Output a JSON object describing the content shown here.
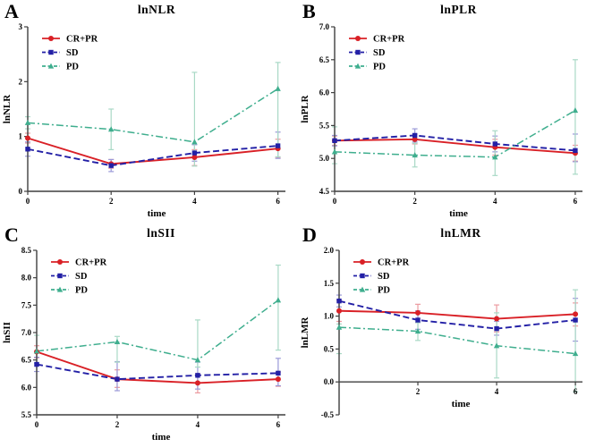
{
  "figure": {
    "background": "#ffffff",
    "axis_color": "#3f3f3f",
    "text_color": "#000000"
  },
  "chart_data": [
    {
      "panel": "A",
      "type": "line",
      "title": "lnNLR",
      "xlabel": "time",
      "ylabel": "lnNLR",
      "x": [
        0,
        2,
        4,
        6
      ],
      "xticks": [
        0,
        2,
        4,
        6
      ],
      "xlim": [
        0,
        6.18
      ],
      "ylim": [
        0,
        3
      ],
      "yticks": [
        0,
        1,
        2,
        3
      ],
      "ytick_labels": [
        "0",
        "1",
        "2",
        "3"
      ],
      "x_axis_at": 0,
      "legend_position": "top-left",
      "grid": false,
      "series": [
        {
          "name": "CR+PR",
          "color": "#d92026",
          "err_color": "#ec9ba0",
          "dash": "solid",
          "marker": "circle",
          "values": [
            0.97,
            0.5,
            0.62,
            0.78
          ],
          "err_lo": [
            0.88,
            0.42,
            0.47,
            0.62
          ],
          "err_hi": [
            1.06,
            0.58,
            0.76,
            0.95
          ]
        },
        {
          "name": "SD",
          "color": "#2320a6",
          "err_color": "#9a99d8",
          "dash": "dashed",
          "marker": "square",
          "values": [
            0.77,
            0.47,
            0.7,
            0.83
          ],
          "err_lo": [
            0.64,
            0.36,
            0.55,
            0.6
          ],
          "err_hi": [
            0.9,
            0.58,
            0.85,
            1.08
          ]
        },
        {
          "name": "PD",
          "color": "#3fae8e",
          "err_color": "#a9d9c6",
          "dash": "dashdot",
          "marker": "triangle",
          "values": [
            1.25,
            1.13,
            0.9,
            1.87
          ],
          "err_lo": [
            1.14,
            0.76,
            0.46,
            0.63
          ],
          "err_hi": [
            1.36,
            1.5,
            2.17,
            2.35
          ]
        }
      ]
    },
    {
      "panel": "B",
      "type": "line",
      "title": "lnPLR",
      "xlabel": "time",
      "ylabel": "lnPLR",
      "x": [
        0,
        2,
        4,
        6
      ],
      "xticks": [
        0,
        2,
        4,
        6
      ],
      "xlim": [
        0,
        6.18
      ],
      "ylim": [
        4.5,
        7.0
      ],
      "yticks": [
        4.5,
        5.0,
        5.5,
        6.0,
        6.5,
        7.0
      ],
      "ytick_labels": [
        "4.5",
        "5.0",
        "5.5",
        "6.0",
        "6.5",
        "7.0"
      ],
      "x_axis_at": 4.5,
      "legend_position": "top-left",
      "grid": false,
      "series": [
        {
          "name": "CR+PR",
          "color": "#d92026",
          "err_color": "#ec9ba0",
          "dash": "solid",
          "marker": "circle",
          "values": [
            5.27,
            5.29,
            5.17,
            5.08
          ],
          "err_lo": [
            5.2,
            5.22,
            5.05,
            4.96
          ],
          "err_hi": [
            5.34,
            5.37,
            5.29,
            5.2
          ]
        },
        {
          "name": "SD",
          "color": "#2320a6",
          "err_color": "#9a99d8",
          "dash": "dashed",
          "marker": "square",
          "values": [
            5.27,
            5.35,
            5.22,
            5.12
          ],
          "err_lo": [
            5.19,
            5.25,
            5.1,
            4.95
          ],
          "err_hi": [
            5.35,
            5.45,
            5.34,
            5.37
          ]
        },
        {
          "name": "PD",
          "color": "#3fae8e",
          "err_color": "#a9d9c6",
          "dash": "dashdot",
          "marker": "triangle",
          "values": [
            5.1,
            5.05,
            5.02,
            5.73
          ],
          "err_lo": [
            4.92,
            4.87,
            4.74,
            4.76
          ],
          "err_hi": [
            5.48,
            5.23,
            5.42,
            6.5
          ]
        }
      ]
    },
    {
      "panel": "C",
      "type": "line",
      "title": "lnSII",
      "xlabel": "time",
      "ylabel": "lnSII",
      "x": [
        0,
        2,
        4,
        6
      ],
      "xticks": [
        0,
        2,
        4,
        6
      ],
      "xlim": [
        0,
        6.18
      ],
      "ylim": [
        5.5,
        8.5
      ],
      "yticks": [
        5.5,
        6.0,
        6.5,
        7.0,
        7.5,
        8.0,
        8.5
      ],
      "ytick_labels": [
        "5.5",
        "6.0",
        "6.5",
        "7.0",
        "7.5",
        "8.0",
        "8.5"
      ],
      "x_axis_at": 5.5,
      "legend_position": "top-left",
      "grid": false,
      "series": [
        {
          "name": "CR+PR",
          "color": "#d92026",
          "err_color": "#ec9ba0",
          "dash": "solid",
          "marker": "circle",
          "values": [
            6.65,
            6.15,
            6.08,
            6.15
          ],
          "err_lo": [
            6.54,
            6.0,
            5.9,
            6.02
          ],
          "err_hi": [
            6.76,
            6.32,
            6.25,
            6.28
          ]
        },
        {
          "name": "SD",
          "color": "#2320a6",
          "err_color": "#9a99d8",
          "dash": "dashed",
          "marker": "square",
          "values": [
            6.42,
            6.15,
            6.22,
            6.26
          ],
          "err_lo": [
            6.29,
            5.94,
            5.97,
            6.03
          ],
          "err_hi": [
            6.55,
            6.47,
            6.46,
            6.53
          ]
        },
        {
          "name": "PD",
          "color": "#3fae8e",
          "err_color": "#a9d9c6",
          "dash": "dashdot",
          "marker": "triangle",
          "values": [
            6.66,
            6.83,
            6.5,
            7.59
          ],
          "err_lo": [
            6.44,
            6.46,
            6.37,
            6.68
          ],
          "err_hi": [
            6.95,
            6.93,
            7.23,
            8.23
          ]
        }
      ]
    },
    {
      "panel": "D",
      "type": "line",
      "title": "lnLMR",
      "xlabel": "time",
      "ylabel": "lnLMR",
      "x": [
        0,
        2,
        4,
        6
      ],
      "xticks": [
        2,
        4,
        6
      ],
      "xlim": [
        0,
        6.18
      ],
      "ylim": [
        -0.5,
        2.0
      ],
      "yticks": [
        -0.5,
        0.0,
        0.5,
        1.0,
        1.5,
        2.0
      ],
      "ytick_labels": [
        "-0.5",
        "0.0",
        "0.5",
        "1.0",
        "1.5",
        "2.0"
      ],
      "x_axis_at": 0.0,
      "legend_position": "top-left",
      "grid": false,
      "series": [
        {
          "name": "CR+PR",
          "color": "#d92026",
          "err_color": "#ec9ba0",
          "dash": "solid",
          "marker": "circle",
          "values": [
            1.08,
            1.05,
            0.96,
            1.03
          ],
          "err_lo": [
            0.92,
            0.9,
            0.76,
            0.85
          ],
          "err_hi": [
            1.24,
            1.18,
            1.17,
            1.2
          ]
        },
        {
          "name": "SD",
          "color": "#2320a6",
          "err_color": "#9a99d8",
          "dash": "dashed",
          "marker": "square",
          "values": [
            1.23,
            0.94,
            0.81,
            0.94
          ],
          "err_lo": [
            1.14,
            0.8,
            0.71,
            0.62
          ],
          "err_hi": [
            1.32,
            1.08,
            0.92,
            1.27
          ]
        },
        {
          "name": "PD",
          "color": "#3fae8e",
          "err_color": "#a9d9c6",
          "dash": "dashdot",
          "marker": "triangle",
          "values": [
            0.83,
            0.77,
            0.55,
            0.43
          ],
          "err_lo": [
            0.43,
            0.63,
            0.06,
            -0.15
          ],
          "err_hi": [
            0.88,
            0.9,
            1.05,
            1.4
          ]
        }
      ]
    }
  ]
}
